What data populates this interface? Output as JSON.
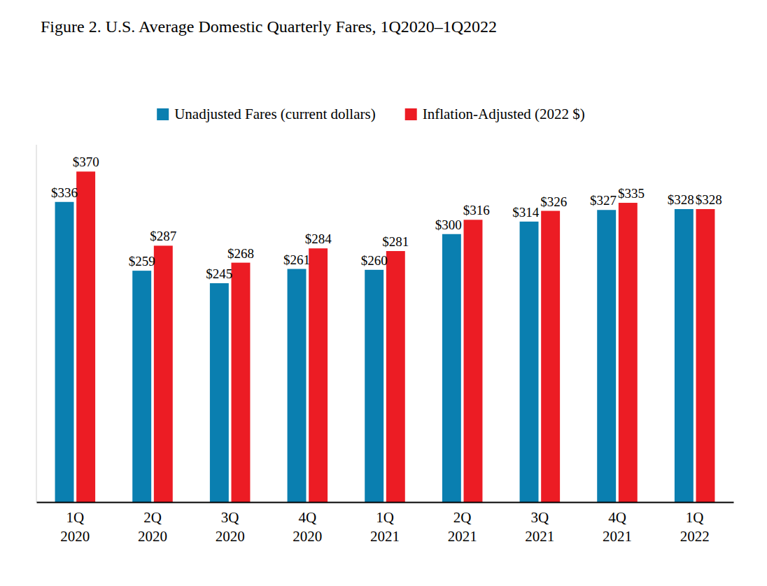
{
  "chart_data": {
    "type": "bar",
    "title": "Figure 2. U.S. Average Domestic Quarterly Fares, 1Q2020–1Q2022",
    "categories": [
      "1Q 2020",
      "2Q 2020",
      "3Q 2020",
      "4Q 2020",
      "1Q 2021",
      "2Q 2021",
      "3Q 2021",
      "4Q 2021",
      "1Q 2022"
    ],
    "series": [
      {
        "name": "Unadjusted Fares (current dollars)",
        "color": "#0a7fb0",
        "values": [
          336,
          259,
          245,
          261,
          260,
          300,
          314,
          327,
          328
        ],
        "value_labels": [
          "$336",
          "$259",
          "$245",
          "$261",
          "$260",
          "$300",
          "$314",
          "$327",
          "$328"
        ]
      },
      {
        "name": "Inflation-Adjusted (2022 $)",
        "color": "#ec1c24",
        "values": [
          370,
          287,
          268,
          284,
          281,
          316,
          326,
          335,
          328
        ],
        "value_labels": [
          "$370",
          "$287",
          "$268",
          "$284",
          "$281",
          "$316",
          "$326",
          "$335",
          "$328"
        ]
      }
    ],
    "ylim": [
      0,
      400
    ],
    "data_labels": true,
    "legend": "top",
    "tick_labels": "x",
    "grid": false
  }
}
